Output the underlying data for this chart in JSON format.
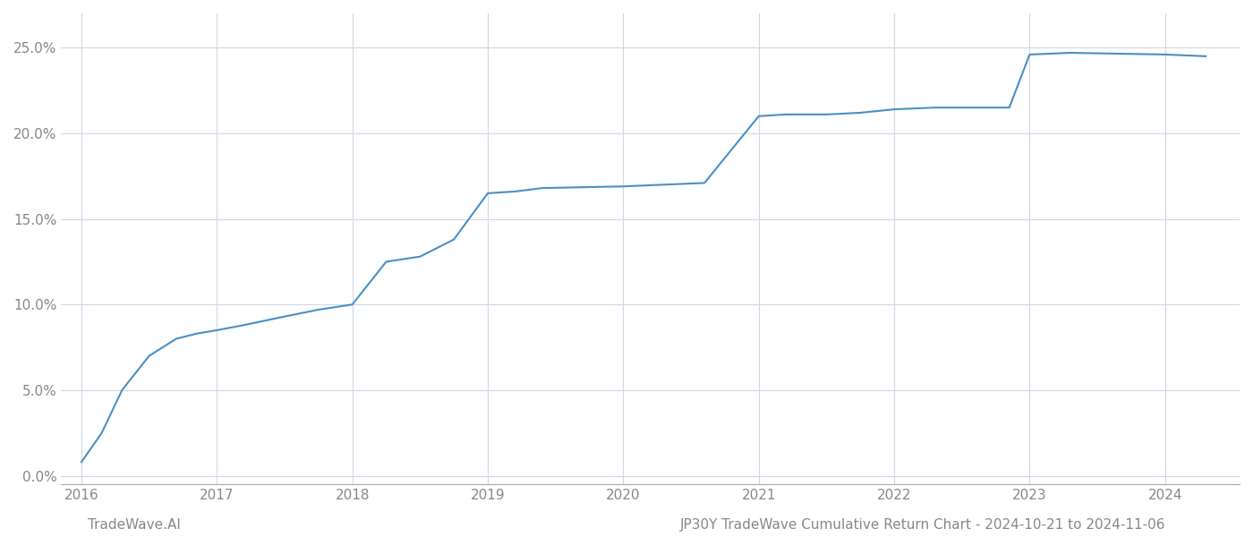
{
  "title": "JP30Y TradeWave Cumulative Return Chart - 2024-10-21 to 2024-11-06",
  "watermark": "TradeWave.AI",
  "line_color": "#4a90c4",
  "background_color": "#ffffff",
  "grid_color": "#d0d8e4",
  "x_data": [
    2016.0,
    2016.15,
    2016.3,
    2016.5,
    2016.7,
    2016.85,
    2017.0,
    2017.2,
    2017.5,
    2017.75,
    2018.0,
    2018.25,
    2018.5,
    2018.75,
    2019.0,
    2019.2,
    2019.4,
    2020.0,
    2020.3,
    2020.6,
    2021.0,
    2021.2,
    2021.5,
    2021.75,
    2022.0,
    2022.3,
    2022.6,
    2022.85,
    2023.0,
    2023.3,
    2024.0,
    2024.3
  ],
  "y_data": [
    0.008,
    0.025,
    0.05,
    0.07,
    0.08,
    0.083,
    0.085,
    0.088,
    0.093,
    0.097,
    0.1,
    0.125,
    0.128,
    0.138,
    0.165,
    0.166,
    0.168,
    0.169,
    0.17,
    0.171,
    0.21,
    0.211,
    0.211,
    0.212,
    0.214,
    0.215,
    0.215,
    0.215,
    0.246,
    0.247,
    0.246,
    0.245
  ],
  "yticks": [
    0.0,
    0.05,
    0.1,
    0.15,
    0.2,
    0.25
  ],
  "xticks": [
    2016,
    2017,
    2018,
    2019,
    2020,
    2021,
    2022,
    2023,
    2024
  ],
  "tick_color": "#888888",
  "axis_color": "#aaaaaa",
  "label_fontsize": 11,
  "title_fontsize": 11,
  "watermark_fontsize": 11,
  "line_width": 1.5,
  "xlim": [
    2015.85,
    2024.55
  ],
  "ylim": [
    -0.005,
    0.27
  ]
}
